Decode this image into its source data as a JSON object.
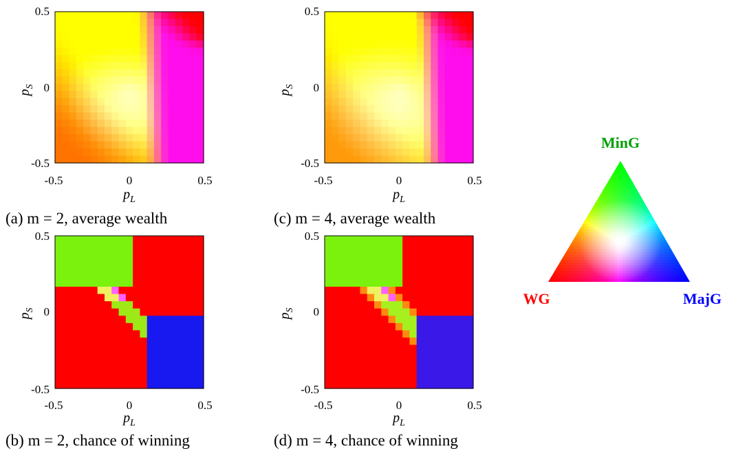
{
  "legend": {
    "top": {
      "label": "MinG",
      "color": "#00a000"
    },
    "left": {
      "label": "WG",
      "color": "#ff0000"
    },
    "right": {
      "label": "MajG",
      "color": "#0000ff"
    }
  },
  "chart_data": [
    {
      "id": "a",
      "type": "heatmap",
      "caption": "(a) m = 2, average wealth",
      "metric": "average wealth",
      "m": 2,
      "xlabel": "p",
      "xlabel_sub": "L",
      "ylabel": "p",
      "ylabel_sub": "S",
      "xlim": [
        -0.5,
        0.5
      ],
      "ylim": [
        -0.5,
        0.5
      ],
      "x_ticks": [
        "-0.5",
        "0",
        "0.5"
      ],
      "y_ticks": [
        "-0.5",
        "0",
        "0.5"
      ],
      "grid": 21,
      "color_model": "mix of WG (red), MinG (green), MajG (blue) shares",
      "regions": [
        {
          "group": "WG",
          "description": "strongest toward p_L = -0.5, p_S = -0.5"
        },
        {
          "group": "MajG",
          "description": "p_L > 0.1, magenta band"
        },
        {
          "group": "MinG",
          "description": "p_S > 0.1, p_L < 0.2, yellowish"
        }
      ]
    },
    {
      "id": "c",
      "type": "heatmap",
      "caption": "(c) m = 4, average wealth",
      "metric": "average wealth",
      "m": 4,
      "xlabel": "p",
      "xlabel_sub": "L",
      "ylabel": "p",
      "ylabel_sub": "S",
      "xlim": [
        -0.5,
        0.5
      ],
      "ylim": [
        -0.5,
        0.5
      ],
      "x_ticks": [
        "-0.5",
        "0",
        "0.5"
      ],
      "y_ticks": [
        "-0.5",
        "0",
        "0.5"
      ],
      "grid": 21,
      "color_model": "mix of WG (red), MinG (green), MajG (blue) shares",
      "regions": [
        {
          "group": "WG",
          "description": "paler orange toward p_L = -0.5, p_S = -0.5"
        },
        {
          "group": "MajG",
          "description": "p_L > 0.15, magenta band"
        },
        {
          "group": "MinG",
          "description": "p_S > 0.1, p_L < 0.2, yellowish"
        }
      ]
    },
    {
      "id": "b",
      "type": "heatmap",
      "caption": "(b) m = 2, chance of winning",
      "metric": "chance of winning",
      "m": 2,
      "xlabel": "p",
      "xlabel_sub": "L",
      "ylabel": "p",
      "ylabel_sub": "S",
      "xlim": [
        -0.5,
        0.5
      ],
      "ylim": [
        -0.5,
        0.5
      ],
      "x_ticks": [
        "-0.5",
        "0",
        "0.5"
      ],
      "y_ticks": [
        "-0.5",
        "0",
        "0.5"
      ],
      "grid": 21,
      "color_model": "mix of WG (red), MinG (green), MajG (blue) shares",
      "regions": [
        {
          "group": "WG",
          "description": "lower-left (p_L + p_S < 0) and upper-right"
        },
        {
          "group": "MinG",
          "description": "upper-left block and diagonal band"
        },
        {
          "group": "MajG",
          "description": "lower-right block"
        }
      ]
    },
    {
      "id": "d",
      "type": "heatmap",
      "caption": "(d) m = 4, chance of winning",
      "metric": "chance of winning",
      "m": 4,
      "xlabel": "p",
      "xlabel_sub": "L",
      "ylabel": "p",
      "ylabel_sub": "S",
      "xlim": [
        -0.5,
        0.5
      ],
      "ylim": [
        -0.5,
        0.5
      ],
      "x_ticks": [
        "-0.5",
        "0",
        "0.5"
      ],
      "y_ticks": [
        "-0.5",
        "0",
        "0.5"
      ],
      "grid": 21,
      "color_model": "mix of WG (red), MinG (green), MajG (blue) shares",
      "regions": [
        {
          "group": "WG",
          "description": "lower-left (p_L + p_S < 0) and upper-right"
        },
        {
          "group": "MinG",
          "description": "upper-left block and wider diagonal band"
        },
        {
          "group": "MajG",
          "description": "lower-right block, purplish"
        }
      ]
    }
  ]
}
